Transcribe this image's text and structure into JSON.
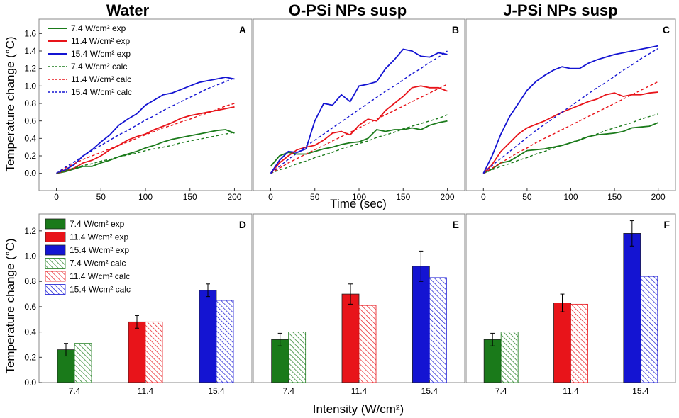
{
  "figure": {
    "titles": [
      "Water",
      "O-PSi NPs susp",
      "J-PSi NPs susp"
    ],
    "top_ylabel": "Temperature change (°C)",
    "top_xlabel": "Time (sec)",
    "bottom_ylabel": "Temperature change (°C)",
    "bottom_xlabel": "Intensity (W/cm²)"
  },
  "colors": {
    "green": "#1a7a1a",
    "red": "#e8141a",
    "blue": "#1414d2"
  },
  "legend_top": [
    {
      "label": "7.4 W/cm² exp",
      "color": "green",
      "style": "solid"
    },
    {
      "label": "11.4 W/cm² exp",
      "color": "red",
      "style": "solid"
    },
    {
      "label": "15.4 W/cm² exp",
      "color": "blue",
      "style": "solid"
    },
    {
      "label": "7.4 W/cm² calc",
      "color": "green",
      "style": "dashed"
    },
    {
      "label": "11.4 W/cm² calc",
      "color": "red",
      "style": "dashed"
    },
    {
      "label": "15.4 W/cm² calc",
      "color": "blue",
      "style": "dashed"
    }
  ],
  "legend_bottom": [
    {
      "label": "7.4 W/cm² exp",
      "color": "green",
      "style": "solid"
    },
    {
      "label": "11.4 W/cm² exp",
      "color": "red",
      "style": "solid"
    },
    {
      "label": "15.4 W/cm² exp",
      "color": "blue",
      "style": "solid"
    },
    {
      "label": "7.4 W/cm² calc",
      "color": "green",
      "style": "hatched"
    },
    {
      "label": "11.4 W/cm² calc",
      "color": "red",
      "style": "hatched"
    },
    {
      "label": "15.4 W/cm² calc",
      "color": "blue",
      "style": "hatched"
    }
  ],
  "chart_data": [
    {
      "panel": "A",
      "type": "line",
      "title": "Water",
      "xlabel": "Time (sec)",
      "ylabel": "Temperature change (°C)",
      "xlim": [
        -10,
        210
      ],
      "ylim": [
        -0.1,
        1.7
      ],
      "xticks": [
        0,
        50,
        100,
        150,
        200
      ],
      "yticks": [
        0.0,
        0.2,
        0.4,
        0.6,
        0.8,
        1.0,
        1.2,
        1.4,
        1.6
      ],
      "x": [
        0,
        10,
        20,
        30,
        40,
        50,
        60,
        70,
        80,
        90,
        100,
        110,
        120,
        130,
        140,
        150,
        160,
        170,
        180,
        190,
        200
      ],
      "series": [
        {
          "name": "7.4 W/cm² exp",
          "color": "green",
          "style": "solid",
          "values": [
            0.0,
            0.02,
            0.05,
            0.08,
            0.08,
            0.12,
            0.15,
            0.19,
            0.22,
            0.25,
            0.29,
            0.32,
            0.36,
            0.39,
            0.41,
            0.43,
            0.45,
            0.47,
            0.49,
            0.5,
            0.46
          ]
        },
        {
          "name": "11.4 W/cm² exp",
          "color": "red",
          "style": "solid",
          "values": [
            0.0,
            0.03,
            0.06,
            0.12,
            0.15,
            0.2,
            0.27,
            0.32,
            0.38,
            0.42,
            0.45,
            0.5,
            0.54,
            0.58,
            0.63,
            0.66,
            0.68,
            0.7,
            0.72,
            0.74,
            0.76
          ]
        },
        {
          "name": "15.4 W/cm² exp",
          "color": "blue",
          "style": "solid",
          "values": [
            0.0,
            0.04,
            0.1,
            0.2,
            0.27,
            0.36,
            0.44,
            0.55,
            0.62,
            0.68,
            0.78,
            0.84,
            0.9,
            0.92,
            0.96,
            1.0,
            1.04,
            1.06,
            1.08,
            1.1,
            1.08
          ]
        },
        {
          "name": "7.4 W/cm² calc",
          "color": "green",
          "style": "dashed",
          "values": [
            0.0,
            0.03,
            0.06,
            0.09,
            0.11,
            0.14,
            0.16,
            0.19,
            0.21,
            0.23,
            0.26,
            0.28,
            0.3,
            0.32,
            0.35,
            0.37,
            0.39,
            0.41,
            0.43,
            0.45,
            0.47
          ]
        },
        {
          "name": "11.4 W/cm² calc",
          "color": "red",
          "style": "dashed",
          "values": [
            0.0,
            0.06,
            0.11,
            0.16,
            0.2,
            0.24,
            0.28,
            0.32,
            0.36,
            0.4,
            0.44,
            0.48,
            0.52,
            0.55,
            0.59,
            0.62,
            0.66,
            0.69,
            0.73,
            0.77,
            0.8
          ]
        },
        {
          "name": "15.4 W/cm² calc",
          "color": "blue",
          "style": "dashed",
          "values": [
            0.0,
            0.07,
            0.13,
            0.2,
            0.26,
            0.32,
            0.38,
            0.44,
            0.49,
            0.55,
            0.61,
            0.66,
            0.72,
            0.77,
            0.82,
            0.87,
            0.92,
            0.97,
            1.01,
            1.05,
            1.09
          ]
        }
      ]
    },
    {
      "panel": "B",
      "type": "line",
      "title": "O-PSi NPs susp",
      "xlabel": "Time (sec)",
      "ylabel": "",
      "xlim": [
        -10,
        210
      ],
      "ylim": [
        -0.1,
        1.7
      ],
      "xticks": [
        0,
        50,
        100,
        150,
        200
      ],
      "yticks": [],
      "x": [
        0,
        10,
        20,
        30,
        40,
        50,
        60,
        70,
        80,
        90,
        100,
        110,
        120,
        130,
        140,
        150,
        160,
        170,
        180,
        190,
        200
      ],
      "series": [
        {
          "name": "7.4 W/cm² exp",
          "color": "green",
          "style": "solid",
          "values": [
            0.08,
            0.2,
            0.24,
            0.22,
            0.22,
            0.25,
            0.28,
            0.3,
            0.33,
            0.35,
            0.36,
            0.4,
            0.5,
            0.48,
            0.5,
            0.5,
            0.52,
            0.5,
            0.55,
            0.58,
            0.6
          ]
        },
        {
          "name": "11.4 W/cm² exp",
          "color": "red",
          "style": "solid",
          "values": [
            0.0,
            0.12,
            0.2,
            0.27,
            0.3,
            0.32,
            0.38,
            0.46,
            0.48,
            0.44,
            0.55,
            0.62,
            0.6,
            0.72,
            0.8,
            0.88,
            0.98,
            1.0,
            0.98,
            0.98,
            0.94
          ]
        },
        {
          "name": "15.4 W/cm² exp",
          "color": "blue",
          "style": "solid",
          "values": [
            0.0,
            0.15,
            0.25,
            0.24,
            0.28,
            0.6,
            0.8,
            0.78,
            0.9,
            0.82,
            1.0,
            1.02,
            1.05,
            1.2,
            1.3,
            1.42,
            1.4,
            1.34,
            1.33,
            1.38,
            1.36
          ]
        },
        {
          "name": "7.4 W/cm² calc",
          "color": "green",
          "style": "dashed",
          "values": [
            0.0,
            0.04,
            0.07,
            0.11,
            0.14,
            0.18,
            0.21,
            0.24,
            0.28,
            0.31,
            0.34,
            0.37,
            0.41,
            0.44,
            0.47,
            0.51,
            0.54,
            0.57,
            0.6,
            0.63,
            0.67
          ]
        },
        {
          "name": "11.4 W/cm² calc",
          "color": "red",
          "style": "dashed",
          "values": [
            0.0,
            0.06,
            0.12,
            0.17,
            0.22,
            0.27,
            0.32,
            0.37,
            0.42,
            0.47,
            0.52,
            0.57,
            0.62,
            0.67,
            0.72,
            0.77,
            0.82,
            0.87,
            0.92,
            0.97,
            1.02
          ]
        },
        {
          "name": "15.4 W/cm² calc",
          "color": "blue",
          "style": "dashed",
          "values": [
            0.0,
            0.08,
            0.16,
            0.23,
            0.31,
            0.38,
            0.45,
            0.52,
            0.59,
            0.66,
            0.73,
            0.8,
            0.87,
            0.94,
            1.0,
            1.07,
            1.14,
            1.2,
            1.27,
            1.33,
            1.4
          ]
        }
      ]
    },
    {
      "panel": "C",
      "type": "line",
      "title": "J-PSi NPs susp",
      "xlabel": "Time (sec)",
      "ylabel": "",
      "xlim": [
        -10,
        210
      ],
      "ylim": [
        -0.1,
        1.7
      ],
      "xticks": [
        0,
        50,
        100,
        150,
        200
      ],
      "yticks": [],
      "x": [
        0,
        10,
        20,
        30,
        40,
        50,
        60,
        70,
        80,
        90,
        100,
        110,
        120,
        130,
        140,
        150,
        160,
        170,
        180,
        190,
        200
      ],
      "series": [
        {
          "name": "7.4 W/cm² exp",
          "color": "green",
          "style": "solid",
          "values": [
            0.0,
            0.05,
            0.12,
            0.14,
            0.2,
            0.26,
            0.27,
            0.28,
            0.3,
            0.32,
            0.35,
            0.38,
            0.42,
            0.44,
            0.45,
            0.46,
            0.48,
            0.52,
            0.53,
            0.54,
            0.58
          ]
        },
        {
          "name": "11.4 W/cm² exp",
          "color": "red",
          "style": "solid",
          "values": [
            0.0,
            0.1,
            0.25,
            0.35,
            0.45,
            0.52,
            0.56,
            0.6,
            0.65,
            0.7,
            0.74,
            0.78,
            0.82,
            0.85,
            0.9,
            0.92,
            0.88,
            0.9,
            0.9,
            0.92,
            0.93
          ]
        },
        {
          "name": "15.4 W/cm² exp",
          "color": "blue",
          "style": "solid",
          "values": [
            0.0,
            0.2,
            0.45,
            0.65,
            0.8,
            0.95,
            1.05,
            1.12,
            1.18,
            1.22,
            1.2,
            1.2,
            1.26,
            1.3,
            1.33,
            1.36,
            1.38,
            1.4,
            1.42,
            1.44,
            1.46
          ]
        },
        {
          "name": "7.4 W/cm² calc",
          "color": "green",
          "style": "dashed",
          "values": [
            0.0,
            0.04,
            0.08,
            0.11,
            0.15,
            0.18,
            0.22,
            0.25,
            0.29,
            0.32,
            0.35,
            0.39,
            0.42,
            0.45,
            0.49,
            0.52,
            0.55,
            0.58,
            0.62,
            0.65,
            0.68
          ]
        },
        {
          "name": "11.4 W/cm² calc",
          "color": "red",
          "style": "dashed",
          "values": [
            0.0,
            0.06,
            0.12,
            0.18,
            0.24,
            0.29,
            0.35,
            0.4,
            0.45,
            0.5,
            0.55,
            0.6,
            0.65,
            0.7,
            0.75,
            0.8,
            0.85,
            0.9,
            0.95,
            1.0,
            1.05
          ]
        },
        {
          "name": "15.4 W/cm² calc",
          "color": "blue",
          "style": "dashed",
          "values": [
            0.0,
            0.09,
            0.17,
            0.25,
            0.33,
            0.41,
            0.49,
            0.56,
            0.63,
            0.7,
            0.77,
            0.84,
            0.91,
            0.98,
            1.04,
            1.11,
            1.18,
            1.24,
            1.31,
            1.37,
            1.43
          ]
        }
      ]
    },
    {
      "panel": "D",
      "type": "bar",
      "title": "Water",
      "xlabel": "Intensity (W/cm²)",
      "ylabel": "Temperature change (°C)",
      "ylim": [
        0,
        1.3
      ],
      "yticks": [
        0.0,
        0.2,
        0.4,
        0.6,
        0.8,
        1.0,
        1.2
      ],
      "categories": [
        "7.4",
        "11.4",
        "15.4"
      ],
      "colors": [
        "green",
        "red",
        "blue"
      ],
      "exp": [
        0.26,
        0.48,
        0.73
      ],
      "exp_err": [
        0.05,
        0.05,
        0.05
      ],
      "calc": [
        0.31,
        0.48,
        0.65
      ]
    },
    {
      "panel": "E",
      "type": "bar",
      "title": "O-PSi NPs susp",
      "xlabel": "Intensity (W/cm²)",
      "ylabel": "",
      "ylim": [
        0,
        1.3
      ],
      "yticks": [],
      "categories": [
        "7.4",
        "11.4",
        "15.4"
      ],
      "colors": [
        "green",
        "red",
        "blue"
      ],
      "exp": [
        0.34,
        0.7,
        0.92
      ],
      "exp_err": [
        0.05,
        0.08,
        0.12
      ],
      "calc": [
        0.4,
        0.61,
        0.83
      ]
    },
    {
      "panel": "F",
      "type": "bar",
      "title": "J-PSi NPs susp",
      "xlabel": "Intensity (W/cm²)",
      "ylabel": "",
      "ylim": [
        0,
        1.3
      ],
      "yticks": [],
      "categories": [
        "7.4",
        "11.4",
        "15.4"
      ],
      "colors": [
        "green",
        "red",
        "blue"
      ],
      "exp": [
        0.34,
        0.63,
        1.18
      ],
      "exp_err": [
        0.05,
        0.07,
        0.1
      ],
      "calc": [
        0.4,
        0.62,
        0.84
      ]
    }
  ]
}
